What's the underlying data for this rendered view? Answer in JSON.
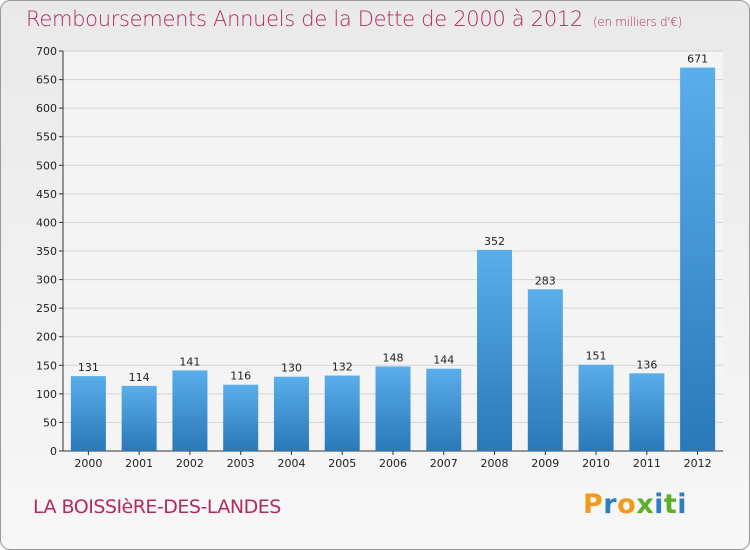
{
  "title": {
    "main": "Remboursements Annuels de la Dette de 2000 à 2012",
    "unit": "(en milliers d'€)"
  },
  "commune": "LA BOISSIèRE-DES-LANDES",
  "logo": {
    "text": "Proxiti",
    "colors": [
      "#f29a1a",
      "#2e7fbf",
      "#5fae2b"
    ]
  },
  "colors": {
    "title": "#b22a62",
    "bar_light": "#5aaeea",
    "bar_dark": "#2a78b8",
    "grid": "#d3d3d3",
    "axis": "#333333"
  },
  "chart_data": {
    "type": "bar",
    "categories": [
      "2000",
      "2001",
      "2002",
      "2003",
      "2004",
      "2005",
      "2006",
      "2007",
      "2008",
      "2009",
      "2010",
      "2011",
      "2012"
    ],
    "values": [
      131,
      114,
      141,
      116,
      130,
      132,
      148,
      144,
      352,
      283,
      151,
      136,
      671
    ],
    "ylim": [
      0,
      700
    ],
    "yticks": [
      0,
      50,
      100,
      150,
      200,
      250,
      300,
      350,
      400,
      450,
      500,
      550,
      600,
      650,
      700
    ],
    "grid": true,
    "data_labels": true
  }
}
